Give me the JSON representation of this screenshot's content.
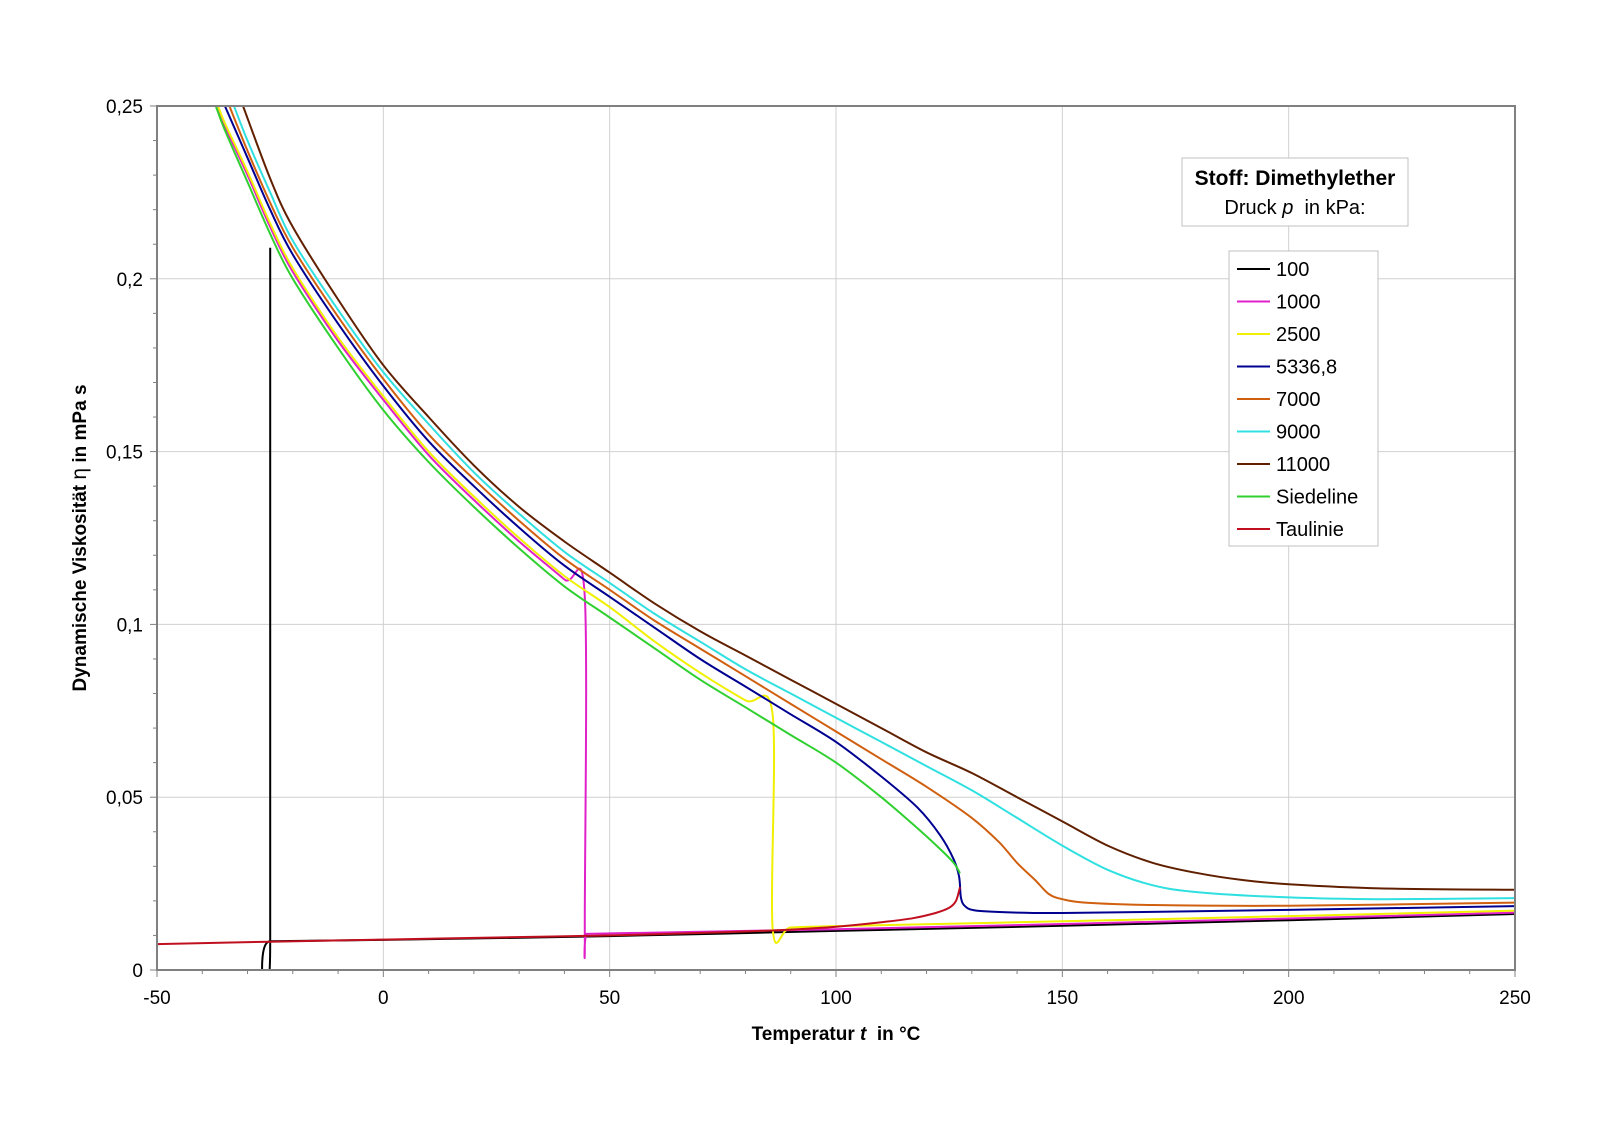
{
  "chart_data": {
    "type": "line",
    "info_title": "Stoff: Dimethylether",
    "info_subtitle": {
      "prefix": "Druck ",
      "symbol": "p",
      "suffix": "  in kPa:"
    },
    "xlabel": {
      "prefix": "Temperatur ",
      "symbol": "t",
      "suffix": "  in °C"
    },
    "ylabel": {
      "prefix": "Dynamische Viskosität ",
      "symbol": "η",
      "suffix": " in mPa s"
    },
    "xlim": [
      -50,
      250
    ],
    "ylim": [
      0,
      0.25
    ],
    "x_ticks": [
      -50,
      0,
      50,
      100,
      150,
      200,
      250
    ],
    "x_tick_labels": [
      "-50",
      "0",
      "50",
      "100",
      "150",
      "200",
      "250"
    ],
    "y_ticks": [
      0,
      0.05,
      0.1,
      0.15,
      0.2,
      0.25
    ],
    "y_tick_labels": [
      "0",
      "0,05",
      "0,1",
      "0,15",
      "0,2",
      "0,25"
    ],
    "grid": true,
    "legend_position": "right",
    "series": [
      {
        "name": "100",
        "color": "#000000",
        "x": [
          -25,
          -25,
          -25,
          0,
          50,
          100,
          150,
          200,
          250
        ],
        "y": [
          0.209,
          0.0083,
          0.0083,
          0.0087,
          0.0098,
          0.0113,
          0.0128,
          0.0144,
          0.0162
        ]
      },
      {
        "name": "1000",
        "color": "#e020c8",
        "x": [
          -37,
          -35,
          -30,
          -25,
          -20,
          -10,
          0,
          10,
          20,
          30,
          40,
          44.5,
          44.5,
          45,
          50,
          100,
          150,
          200,
          250
        ],
        "y": [
          0.25,
          0.244,
          0.23,
          0.215,
          0.202,
          0.182,
          0.165,
          0.149,
          0.136,
          0.124,
          0.113,
          0.108,
          0.0104,
          0.0104,
          0.0106,
          0.0118,
          0.0133,
          0.0149,
          0.0166
        ]
      },
      {
        "name": "2500",
        "color": "#f0f000",
        "x": [
          -36.5,
          -35,
          -30,
          -25,
          -20,
          -10,
          0,
          10,
          20,
          30,
          40,
          50,
          60,
          70,
          80,
          86,
          86,
          90,
          100,
          150,
          200,
          250
        ],
        "y": [
          0.25,
          0.245,
          0.231,
          0.216,
          0.203,
          0.183,
          0.166,
          0.15,
          0.137,
          0.125,
          0.114,
          0.105,
          0.095,
          0.086,
          0.078,
          0.074,
          0.0122,
          0.0123,
          0.0127,
          0.0141,
          0.0156,
          0.0172
        ]
      },
      {
        "name": "5336,8",
        "color": "#000090",
        "x": [
          -35,
          -30,
          -25,
          -20,
          -10,
          0,
          10,
          20,
          30,
          40,
          50,
          60,
          70,
          80,
          90,
          100,
          110,
          118,
          123,
          126,
          127.2,
          127.6,
          128.5,
          131,
          140,
          150,
          170,
          200,
          250
        ],
        "y": [
          0.25,
          0.235,
          0.22,
          0.207,
          0.187,
          0.169,
          0.153,
          0.14,
          0.128,
          0.117,
          0.108,
          0.099,
          0.09,
          0.082,
          0.074,
          0.066,
          0.056,
          0.047,
          0.039,
          0.032,
          0.027,
          0.021,
          0.0185,
          0.0172,
          0.0166,
          0.0165,
          0.0168,
          0.0174,
          0.0185
        ]
      },
      {
        "name": "7000",
        "color": "#d06010",
        "x": [
          -34,
          -30,
          -25,
          -20,
          -10,
          0,
          10,
          20,
          30,
          40,
          50,
          60,
          70,
          80,
          90,
          100,
          110,
          120,
          130,
          136,
          140,
          144,
          147,
          150,
          155,
          170,
          200,
          250
        ],
        "y": [
          0.25,
          0.237,
          0.222,
          0.209,
          0.189,
          0.171,
          0.155,
          0.142,
          0.13,
          0.119,
          0.11,
          0.101,
          0.093,
          0.085,
          0.077,
          0.069,
          0.061,
          0.053,
          0.044,
          0.037,
          0.031,
          0.026,
          0.022,
          0.0205,
          0.0195,
          0.0188,
          0.0186,
          0.0195
        ]
      },
      {
        "name": "9000",
        "color": "#30e0e0",
        "x": [
          -33,
          -30,
          -25,
          -20,
          -10,
          0,
          10,
          20,
          30,
          40,
          50,
          60,
          70,
          80,
          90,
          100,
          110,
          120,
          130,
          140,
          150,
          160,
          170,
          180,
          200,
          220,
          250
        ],
        "y": [
          0.25,
          0.24,
          0.225,
          0.211,
          0.191,
          0.173,
          0.158,
          0.144,
          0.132,
          0.121,
          0.112,
          0.103,
          0.095,
          0.087,
          0.08,
          0.073,
          0.066,
          0.059,
          0.052,
          0.044,
          0.036,
          0.029,
          0.0245,
          0.0225,
          0.021,
          0.0205,
          0.0208
        ]
      },
      {
        "name": "11000",
        "color": "#602000",
        "x": [
          -31,
          -25,
          -20,
          -10,
          0,
          10,
          20,
          30,
          40,
          50,
          60,
          70,
          80,
          90,
          100,
          110,
          120,
          130,
          140,
          150,
          160,
          170,
          180,
          190,
          200,
          220,
          250
        ],
        "y": [
          0.25,
          0.229,
          0.215,
          0.194,
          0.175,
          0.16,
          0.146,
          0.134,
          0.124,
          0.115,
          0.106,
          0.098,
          0.091,
          0.084,
          0.077,
          0.07,
          0.063,
          0.057,
          0.05,
          0.043,
          0.036,
          0.031,
          0.028,
          0.026,
          0.0248,
          0.0236,
          0.0232
        ]
      },
      {
        "name": "Siedeline",
        "color": "#30d030",
        "x": [
          -37,
          -35,
          -30,
          -25,
          -20,
          -10,
          0,
          10,
          20,
          30,
          40,
          50,
          60,
          70,
          80,
          90,
          100,
          110,
          118,
          123,
          126,
          127.4
        ],
        "y": [
          0.25,
          0.243,
          0.228,
          0.213,
          0.2,
          0.18,
          0.162,
          0.147,
          0.134,
          0.122,
          0.111,
          0.102,
          0.093,
          0.084,
          0.076,
          0.068,
          0.06,
          0.05,
          0.041,
          0.035,
          0.031,
          0.028
        ]
      },
      {
        "name": "Taulinie",
        "color": "#c01020",
        "x": [
          -50,
          -25,
          0,
          25,
          50,
          75,
          90,
          100,
          110,
          117,
          122,
          125,
          126.5,
          127.4
        ],
        "y": [
          0.0075,
          0.0082,
          0.0088,
          0.0094,
          0.01,
          0.0109,
          0.0117,
          0.0125,
          0.0138,
          0.015,
          0.0165,
          0.018,
          0.02,
          0.024
        ]
      }
    ]
  }
}
